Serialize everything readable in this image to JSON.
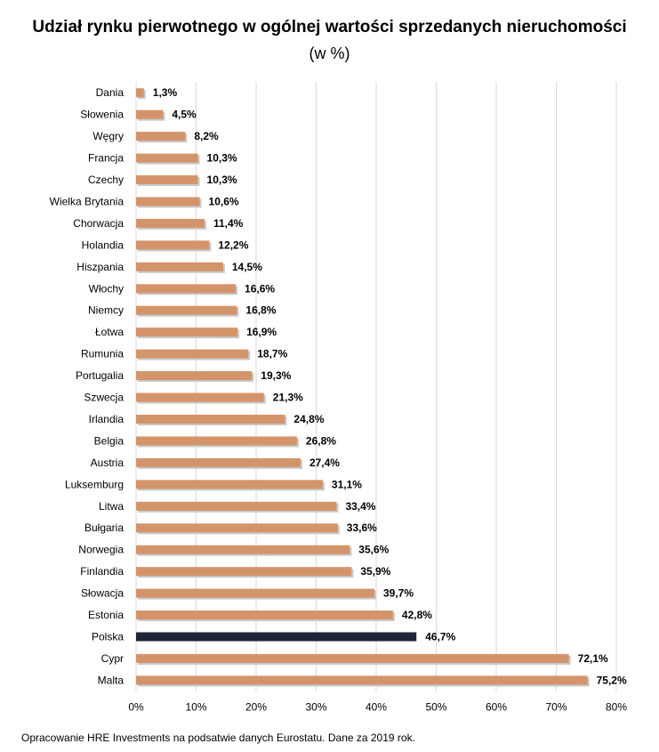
{
  "chart_data": {
    "type": "bar",
    "orientation": "horizontal",
    "title": "Udział rynku pierwotnego w ogólnej wartości sprzedanych nieruchomości",
    "subtitle": "(w %)",
    "categories": [
      "Dania",
      "Słowenia",
      "Węgry",
      "Francja",
      "Czechy",
      "Wielka Brytania",
      "Chorwacja",
      "Holandia",
      "Hiszpania",
      "Włochy",
      "Niemcy",
      "Łotwa",
      "Rumunia",
      "Portugalia",
      "Szwecja",
      "Irlandia",
      "Belgia",
      "Austria",
      "Luksemburg",
      "Litwa",
      "Bułgaria",
      "Norwegia",
      "Finlandia",
      "Słowacja",
      "Estonia",
      "Polska",
      "Cypr",
      "Malta"
    ],
    "values": [
      1.3,
      4.5,
      8.2,
      10.3,
      10.3,
      10.6,
      11.4,
      12.2,
      14.5,
      16.6,
      16.8,
      16.9,
      18.7,
      19.3,
      21.3,
      24.8,
      26.8,
      27.4,
      31.1,
      33.4,
      33.6,
      35.6,
      35.9,
      39.7,
      42.8,
      46.7,
      72.1,
      75.2
    ],
    "value_labels": [
      "1,3%",
      "4,5%",
      "8,2%",
      "10,3%",
      "10,3%",
      "10,6%",
      "11,4%",
      "12,2%",
      "14,5%",
      "16,6%",
      "16,8%",
      "16,9%",
      "18,7%",
      "19,3%",
      "21,3%",
      "24,8%",
      "26,8%",
      "27,4%",
      "31,1%",
      "33,4%",
      "33,6%",
      "35,6%",
      "35,9%",
      "39,7%",
      "42,8%",
      "46,7%",
      "72,1%",
      "75,2%"
    ],
    "highlight": "Polska",
    "xlim": [
      0,
      80
    ],
    "xticks": [
      0,
      10,
      20,
      30,
      40,
      50,
      60,
      70,
      80
    ],
    "xtick_labels": [
      "0%",
      "10%",
      "20%",
      "30%",
      "40%",
      "50%",
      "60%",
      "70%",
      "80%"
    ],
    "grid": true,
    "colors": {
      "bar": "#D4946A",
      "highlight": "#1F2438",
      "shadow": "#C9C9C9",
      "grid": "#D9D9D9"
    }
  },
  "footer": {
    "source": "Opracowanie HRE Investments na podsatwie danych Eurostatu. Dane za 2019 rok."
  }
}
